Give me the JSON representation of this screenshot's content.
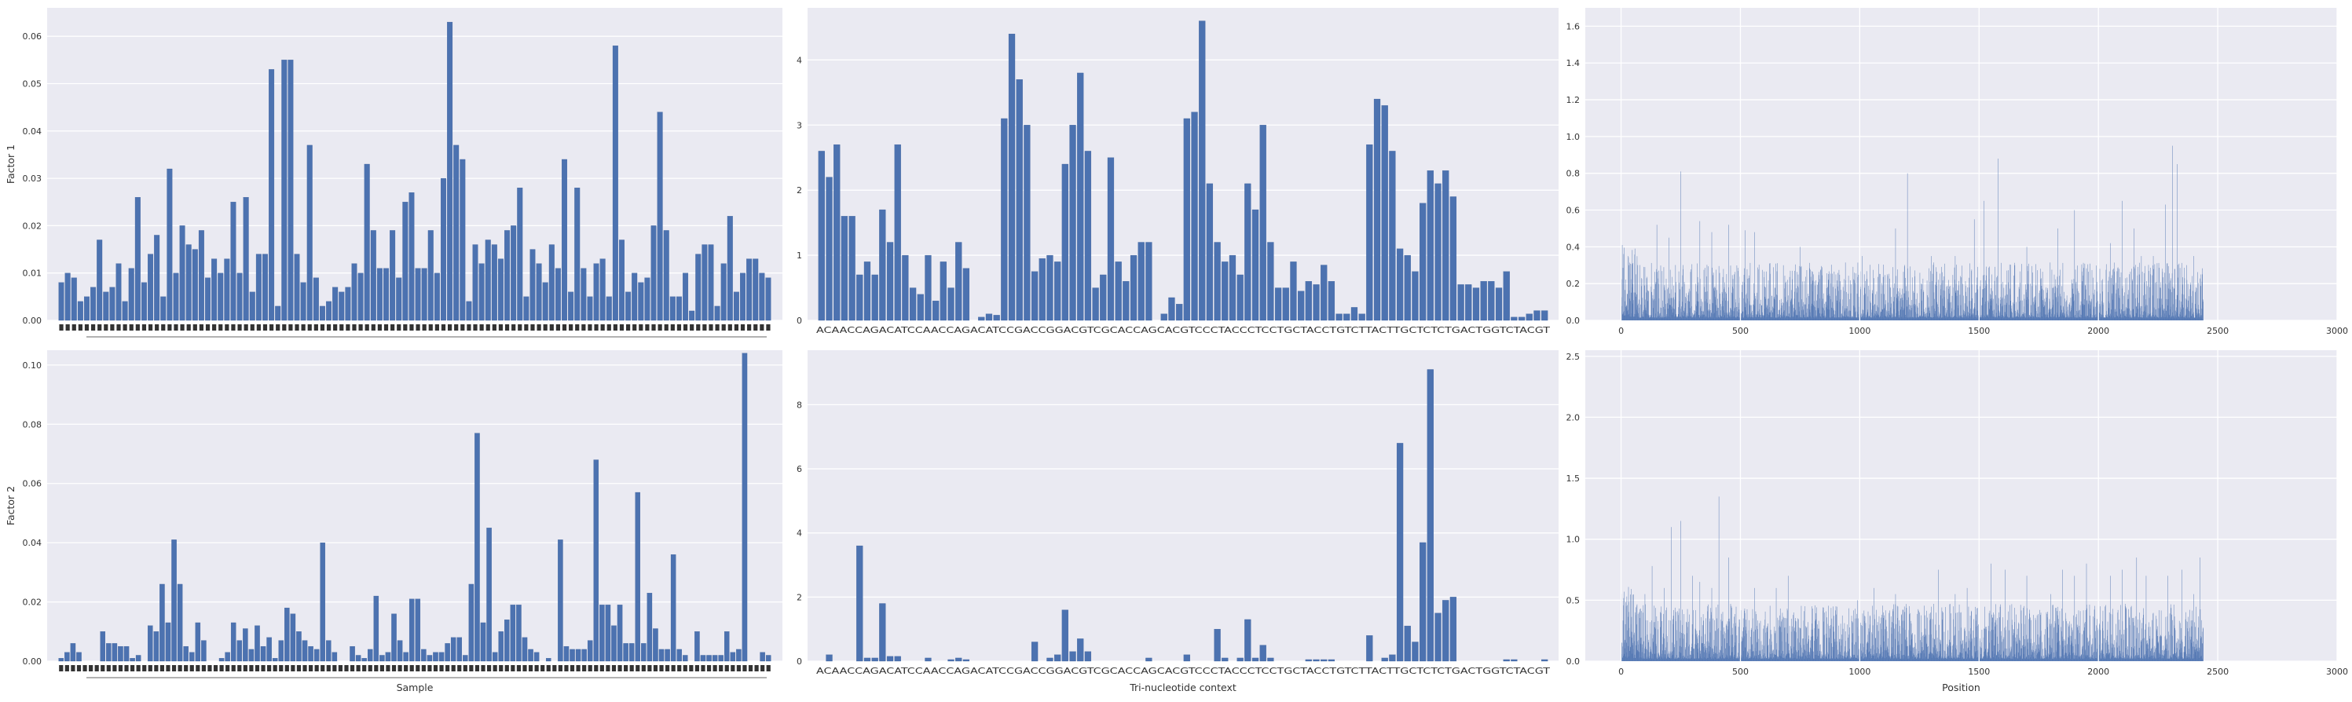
{
  "colors": {
    "bar": "#4c72b0",
    "panel": "#eaeaf2",
    "grid": "#ffffff",
    "text": "#333333"
  },
  "chart_data": [
    {
      "type": "bar",
      "grid": true,
      "xlabel": "",
      "ylabel": "Factor 1",
      "ylim": [
        0,
        0.066
      ],
      "yticks": [
        0.0,
        0.01,
        0.02,
        0.03,
        0.04,
        0.05,
        0.06
      ],
      "ytick_labels": [
        "0.00",
        "0.01",
        "0.02",
        "0.03",
        "0.04",
        "0.05",
        "0.06"
      ],
      "values": [
        0.008,
        0.01,
        0.009,
        0.004,
        0.005,
        0.007,
        0.017,
        0.006,
        0.007,
        0.012,
        0.004,
        0.011,
        0.026,
        0.008,
        0.014,
        0.018,
        0.005,
        0.032,
        0.01,
        0.02,
        0.016,
        0.015,
        0.019,
        0.009,
        0.013,
        0.01,
        0.013,
        0.025,
        0.01,
        0.026,
        0.006,
        0.014,
        0.014,
        0.053,
        0.003,
        0.055,
        0.055,
        0.014,
        0.008,
        0.037,
        0.009,
        0.003,
        0.004,
        0.007,
        0.006,
        0.007,
        0.012,
        0.01,
        0.033,
        0.019,
        0.011,
        0.011,
        0.019,
        0.009,
        0.025,
        0.027,
        0.011,
        0.011,
        0.019,
        0.01,
        0.03,
        0.063,
        0.037,
        0.034,
        0.004,
        0.016,
        0.012,
        0.017,
        0.016,
        0.013,
        0.019,
        0.02,
        0.028,
        0.005,
        0.015,
        0.012,
        0.008,
        0.016,
        0.011,
        0.034,
        0.006,
        0.028,
        0.011,
        0.005,
        0.012,
        0.013,
        0.005,
        0.058,
        0.017,
        0.006,
        0.01,
        0.008,
        0.009,
        0.02,
        0.044,
        0.019,
        0.005,
        0.005,
        0.01,
        0.002,
        0.014,
        0.016,
        0.016,
        0.003,
        0.012,
        0.022,
        0.006,
        0.01,
        0.013,
        0.013,
        0.01,
        0.009
      ]
    },
    {
      "type": "bar",
      "grid": true,
      "xlabel": "",
      "ylabel": "",
      "ylim": [
        0,
        4.8
      ],
      "yticks": [
        0,
        1,
        2,
        3,
        4
      ],
      "ytick_labels": [
        "0",
        "1",
        "2",
        "3",
        "4"
      ],
      "x_label_text": "ACAACCAGACATCCAACCAGACATCCGACCGGACGTCGCACCAGCACGTCCCTACCCTCCTGCTACCTGTCTTACTTGCTCTCTGACTGGTCTACGT",
      "values": [
        2.6,
        2.2,
        2.7,
        1.6,
        1.6,
        0.7,
        0.9,
        0.7,
        1.7,
        1.2,
        2.7,
        1.0,
        0.5,
        0.4,
        1.0,
        0.3,
        0.9,
        0.5,
        1.2,
        0.8,
        0.0,
        0.05,
        0.1,
        0.08,
        3.1,
        4.4,
        3.7,
        3.0,
        0.75,
        0.95,
        1.0,
        0.9,
        2.4,
        3.0,
        3.8,
        2.6,
        0.5,
        0.7,
        2.5,
        0.9,
        0.6,
        1.0,
        1.2,
        1.2,
        0.0,
        0.1,
        0.35,
        0.25,
        3.1,
        3.2,
        4.6,
        2.1,
        1.2,
        0.9,
        1.0,
        0.7,
        2.1,
        1.7,
        3.0,
        1.2,
        0.5,
        0.5,
        0.9,
        0.45,
        0.6,
        0.55,
        0.85,
        0.6,
        0.1,
        0.1,
        0.2,
        0.1,
        2.7,
        3.4,
        3.3,
        2.6,
        1.1,
        1.0,
        0.75,
        1.8,
        2.3,
        2.1,
        2.3,
        1.9,
        0.55,
        0.55,
        0.5,
        0.6,
        0.6,
        0.5,
        0.75,
        0.05,
        0.05,
        0.1,
        0.15,
        0.15
      ]
    },
    {
      "type": "bar",
      "grid": true,
      "xlabel": "",
      "ylabel": "",
      "xlim": [
        -150,
        3000
      ],
      "ylim": [
        0,
        1.7
      ],
      "xticks": [
        0,
        500,
        1000,
        1500,
        2000,
        2500,
        3000
      ],
      "yticks": [
        0.0,
        0.2,
        0.4,
        0.6,
        0.8,
        1.0,
        1.2,
        1.4,
        1.6
      ],
      "ytick_labels": [
        "0.0",
        "0.2",
        "0.4",
        "0.6",
        "0.8",
        "1.0",
        "1.2",
        "1.4",
        "1.6"
      ],
      "n_positions": 2440,
      "peaks": [
        [
          5,
          0.41
        ],
        [
          30,
          0.35
        ],
        [
          100,
          0.29
        ],
        [
          150,
          0.52
        ],
        [
          200,
          0.45
        ],
        [
          250,
          0.81
        ],
        [
          330,
          0.54
        ],
        [
          380,
          0.48
        ],
        [
          450,
          0.52
        ],
        [
          520,
          0.49
        ],
        [
          560,
          0.48
        ],
        [
          680,
          0.3
        ],
        [
          750,
          0.4
        ],
        [
          900,
          0.25
        ],
        [
          1010,
          0.35
        ],
        [
          1150,
          0.5
        ],
        [
          1200,
          0.8
        ],
        [
          1300,
          0.35
        ],
        [
          1400,
          0.35
        ],
        [
          1480,
          0.55
        ],
        [
          1520,
          0.65
        ],
        [
          1580,
          0.88
        ],
        [
          1650,
          0.3
        ],
        [
          1700,
          0.4
        ],
        [
          1830,
          0.5
        ],
        [
          1900,
          0.6
        ],
        [
          2000,
          0.45
        ],
        [
          2050,
          0.42
        ],
        [
          2100,
          0.65
        ],
        [
          2150,
          0.5
        ],
        [
          2180,
          0.35
        ],
        [
          2230,
          0.35
        ],
        [
          2280,
          0.63
        ],
        [
          2310,
          0.95
        ],
        [
          2330,
          0.85
        ],
        [
          2400,
          0.35
        ],
        [
          2430,
          0.25
        ]
      ]
    },
    {
      "type": "bar",
      "grid": true,
      "xlabel": "Sample",
      "ylabel": "Factor 2",
      "ylim": [
        0,
        0.105
      ],
      "yticks": [
        0.0,
        0.02,
        0.04,
        0.06,
        0.08,
        0.1
      ],
      "ytick_labels": [
        "0.00",
        "0.02",
        "0.04",
        "0.06",
        "0.08",
        "0.10"
      ],
      "values": [
        0.001,
        0.003,
        0.006,
        0.003,
        0.0,
        0.0,
        0.0,
        0.01,
        0.006,
        0.006,
        0.005,
        0.005,
        0.001,
        0.002,
        0.0,
        0.012,
        0.01,
        0.026,
        0.013,
        0.041,
        0.026,
        0.005,
        0.003,
        0.013,
        0.007,
        0.0,
        0.0,
        0.001,
        0.003,
        0.013,
        0.007,
        0.011,
        0.004,
        0.012,
        0.005,
        0.008,
        0.001,
        0.007,
        0.018,
        0.016,
        0.01,
        0.007,
        0.005,
        0.004,
        0.04,
        0.007,
        0.003,
        0.0,
        0.0,
        0.005,
        0.002,
        0.001,
        0.004,
        0.022,
        0.002,
        0.003,
        0.016,
        0.007,
        0.003,
        0.021,
        0.021,
        0.004,
        0.002,
        0.003,
        0.003,
        0.006,
        0.008,
        0.008,
        0.002,
        0.026,
        0.077,
        0.013,
        0.045,
        0.003,
        0.01,
        0.014,
        0.019,
        0.019,
        0.008,
        0.004,
        0.003,
        0.0,
        0.001,
        0.0,
        0.041,
        0.005,
        0.004,
        0.004,
        0.004,
        0.007,
        0.068,
        0.019,
        0.019,
        0.012,
        0.019,
        0.006,
        0.006,
        0.057,
        0.006,
        0.023,
        0.011,
        0.004,
        0.004,
        0.036,
        0.004,
        0.002,
        0.0,
        0.01,
        0.002,
        0.002,
        0.002,
        0.002,
        0.01,
        0.003,
        0.004,
        0.104,
        0.0,
        0.0,
        0.003,
        0.002
      ]
    },
    {
      "type": "bar",
      "grid": true,
      "xlabel": "Tri-nucleotide context",
      "ylabel": "",
      "ylim": [
        0,
        9.7
      ],
      "yticks": [
        0,
        2,
        4,
        6,
        8
      ],
      "ytick_labels": [
        "0",
        "2",
        "4",
        "6",
        "8"
      ],
      "x_label_text": "ACAACCAGACATCCAACCAGACATCCGACCGGACGTCGCACCAGCACGTCCCTACCCTCCTGCTACCTGTCTTACTTGCTCTCTGACTGGTCTACGT",
      "values": [
        0,
        0.2,
        0,
        0,
        0,
        3.6,
        0.1,
        0.1,
        1.8,
        0.15,
        0.15,
        0,
        0,
        0,
        0.1,
        0,
        0,
        0.05,
        0.1,
        0.05,
        0,
        0,
        0,
        0,
        0,
        0,
        0,
        0,
        0.6,
        0,
        0.1,
        0.2,
        1.6,
        0.3,
        0.7,
        0.3,
        0,
        0,
        0,
        0,
        0,
        0,
        0,
        0.1,
        0,
        0,
        0,
        0,
        0.2,
        0,
        0,
        0,
        1.0,
        0.1,
        0,
        0.1,
        1.3,
        0.1,
        0.5,
        0.1,
        0,
        0,
        0,
        0,
        0.05,
        0.05,
        0.05,
        0.05,
        0,
        0,
        0,
        0,
        0.8,
        0,
        0.1,
        0.2,
        6.8,
        1.1,
        0.6,
        3.7,
        9.1,
        1.5,
        1.9,
        2.0,
        0,
        0,
        0,
        0,
        0,
        0,
        0.05,
        0.05,
        0,
        0,
        0,
        0.05
      ]
    },
    {
      "type": "bar",
      "grid": true,
      "xlabel": "Position",
      "ylabel": "",
      "xlim": [
        -150,
        3000
      ],
      "ylim": [
        0,
        2.55
      ],
      "xticks": [
        0,
        500,
        1000,
        1500,
        2000,
        2500,
        3000
      ],
      "yticks": [
        0.0,
        0.5,
        1.0,
        1.5,
        2.0,
        2.5
      ],
      "ytick_labels": [
        "0.0",
        "0.5",
        "1.0",
        "1.5",
        "2.0",
        "2.5"
      ],
      "n_positions": 2440,
      "peaks": [
        [
          10,
          0.45
        ],
        [
          60,
          0.4
        ],
        [
          100,
          0.55
        ],
        [
          130,
          0.78
        ],
        [
          180,
          0.6
        ],
        [
          210,
          1.1
        ],
        [
          250,
          1.15
        ],
        [
          300,
          0.7
        ],
        [
          330,
          0.65
        ],
        [
          380,
          0.6
        ],
        [
          410,
          1.35
        ],
        [
          450,
          0.85
        ],
        [
          500,
          0.5
        ],
        [
          560,
          0.6
        ],
        [
          650,
          0.6
        ],
        [
          700,
          0.7
        ],
        [
          800,
          0.45
        ],
        [
          900,
          0.45
        ],
        [
          990,
          0.5
        ],
        [
          1060,
          0.6
        ],
        [
          1100,
          0.4
        ],
        [
          1150,
          0.55
        ],
        [
          1250,
          0.4
        ],
        [
          1330,
          0.75
        ],
        [
          1400,
          0.55
        ],
        [
          1450,
          0.6
        ],
        [
          1550,
          0.8
        ],
        [
          1610,
          0.75
        ],
        [
          1700,
          0.7
        ],
        [
          1800,
          0.55
        ],
        [
          1850,
          0.75
        ],
        [
          1900,
          0.7
        ],
        [
          1950,
          0.8
        ],
        [
          2050,
          0.7
        ],
        [
          2100,
          0.75
        ],
        [
          2160,
          0.85
        ],
        [
          2200,
          0.7
        ],
        [
          2290,
          0.7
        ],
        [
          2350,
          0.75
        ],
        [
          2400,
          0.55
        ],
        [
          2425,
          0.85
        ]
      ]
    }
  ]
}
